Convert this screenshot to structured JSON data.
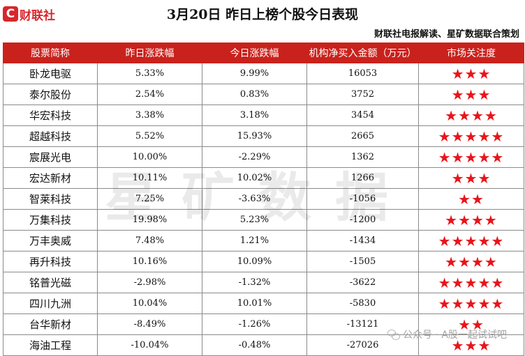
{
  "logo": {
    "mark": "C",
    "text": "财联社"
  },
  "title": "3月20日  昨日上榜个股今日表现",
  "subtitle": "财联社电报解读、星矿数据联合策划",
  "headers": [
    "股票简称",
    "昨日涨跌幅",
    "今日涨跌幅",
    "机构净买入金额（万元）",
    "市场关注度"
  ],
  "rows": [
    {
      "name": "卧龙电驱",
      "yesterday": "5.33%",
      "today": "9.99%",
      "net_buy": "16053",
      "attention": 3
    },
    {
      "name": "泰尔股份",
      "yesterday": "2.54%",
      "today": "0.83%",
      "net_buy": "3752",
      "attention": 3
    },
    {
      "name": "华宏科技",
      "yesterday": "3.38%",
      "today": "3.18%",
      "net_buy": "3454",
      "attention": 4
    },
    {
      "name": "超越科技",
      "yesterday": "5.52%",
      "today": "15.93%",
      "net_buy": "2665",
      "attention": 5
    },
    {
      "name": "宸展光电",
      "yesterday": "10.00%",
      "today": "-2.29%",
      "net_buy": "1362",
      "attention": 5
    },
    {
      "name": "宏达新材",
      "yesterday": "10.11%",
      "today": "10.02%",
      "net_buy": "1266",
      "attention": 3
    },
    {
      "name": "智莱科技",
      "yesterday": "7.25%",
      "today": "-3.63%",
      "net_buy": "-1056",
      "attention": 2
    },
    {
      "name": "万集科技",
      "yesterday": "19.98%",
      "today": "5.23%",
      "net_buy": "-1200",
      "attention": 4
    },
    {
      "name": "万丰奥威",
      "yesterday": "7.48%",
      "today": "1.21%",
      "net_buy": "-1434",
      "attention": 5
    },
    {
      "name": "再升科技",
      "yesterday": "10.16%",
      "today": "10.09%",
      "net_buy": "-1505",
      "attention": 4
    },
    {
      "name": "铭普光磁",
      "yesterday": "-2.98%",
      "today": "-1.32%",
      "net_buy": "-3622",
      "attention": 5
    },
    {
      "name": "四川九洲",
      "yesterday": "10.04%",
      "today": "10.01%",
      "net_buy": "-5830",
      "attention": 5
    },
    {
      "name": "台华新材",
      "yesterday": "-8.49%",
      "today": "-1.26%",
      "net_buy": "-13121",
      "attention": 2
    },
    {
      "name": "海油工程",
      "yesterday": "-10.04%",
      "today": "-0.48%",
      "net_buy": "-27026",
      "attention": 3
    }
  ],
  "star_glyph": "★",
  "star_color": "#e8141a",
  "header_color": "#c9221c",
  "watermark": "星矿数据",
  "wechat_label": "公众号 · A股一起试试吧"
}
